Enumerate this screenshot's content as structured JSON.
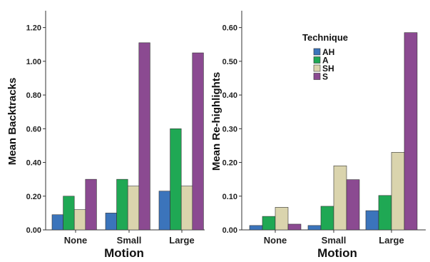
{
  "chart_data": [
    {
      "type": "bar",
      "title": "",
      "xlabel": "Motion",
      "ylabel": "Mean Backtracks",
      "categories": [
        "None",
        "Small",
        "Large"
      ],
      "ylim": [
        0,
        1.3
      ],
      "yticks": [
        "0.00",
        "0.20",
        "0.40",
        "0.60",
        "0.80",
        "1.00",
        "1.20"
      ],
      "grid": false,
      "series": [
        {
          "name": "AH",
          "color": "#3b74bb",
          "values": [
            0.09,
            0.1,
            0.23
          ]
        },
        {
          "name": "A",
          "color": "#1fa854",
          "values": [
            0.2,
            0.3,
            0.6
          ]
        },
        {
          "name": "SH",
          "color": "#dad4ad",
          "values": [
            0.12,
            0.26,
            0.26
          ]
        },
        {
          "name": "S",
          "color": "#8b4a91",
          "values": [
            0.3,
            1.11,
            1.05
          ]
        }
      ]
    },
    {
      "type": "bar",
      "title": "",
      "xlabel": "Motion",
      "ylabel": "Mean Re-highlights",
      "categories": [
        "None",
        "Small",
        "Large"
      ],
      "ylim": [
        0,
        0.65
      ],
      "yticks": [
        "0.00",
        "0.10",
        "0.20",
        "0.30",
        "0.40",
        "0.50",
        "0.60"
      ],
      "grid": false,
      "legend": {
        "title": "Technique",
        "placement": "top-center"
      },
      "series": [
        {
          "name": "AH",
          "color": "#3b74bb",
          "values": [
            0.013,
            0.013,
            0.057
          ]
        },
        {
          "name": "A",
          "color": "#1fa854",
          "values": [
            0.04,
            0.07,
            0.102
          ]
        },
        {
          "name": "SH",
          "color": "#dad4ad",
          "values": [
            0.067,
            0.19,
            0.23
          ]
        },
        {
          "name": "S",
          "color": "#8b4a91",
          "values": [
            0.017,
            0.149,
            0.585
          ]
        }
      ]
    }
  ]
}
